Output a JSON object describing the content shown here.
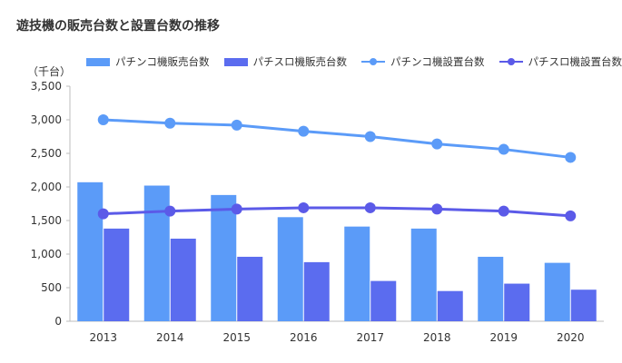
{
  "chart_data": {
    "type": "bar",
    "title": "遊技機の販売台数と設置台数の推移",
    "unit_label": "（千台）",
    "categories": [
      "2013",
      "2014",
      "2015",
      "2016",
      "2017",
      "2018",
      "2019",
      "2020"
    ],
    "ylim": [
      0,
      3500
    ],
    "yticks": [
      "0",
      "500",
      "1,000",
      "1,500",
      "2,000",
      "2,500",
      "3,000",
      "3,500"
    ],
    "ytick_values": [
      0,
      500,
      1000,
      1500,
      2000,
      2500,
      3000,
      3500
    ],
    "legend_position": "top",
    "grid": false,
    "series": [
      {
        "name": "パチンコ機販売台数",
        "kind": "bar",
        "color": "#5b9bf8",
        "values": [
          2070,
          2020,
          1880,
          1550,
          1410,
          1380,
          960,
          870
        ]
      },
      {
        "name": "パチスロ機販売台数",
        "kind": "bar",
        "color": "#5b6cef",
        "values": [
          1380,
          1230,
          960,
          880,
          600,
          450,
          560,
          470
        ]
      },
      {
        "name": "パチンコ機設置台数",
        "kind": "line",
        "color": "#5b9bf8",
        "values": [
          3000,
          2950,
          2920,
          2830,
          2750,
          2640,
          2560,
          2440
        ]
      },
      {
        "name": "パチスロ機設置台数",
        "kind": "line",
        "color": "#5b5ae8",
        "values": [
          1600,
          1640,
          1670,
          1690,
          1690,
          1670,
          1640,
          1570
        ]
      }
    ]
  }
}
